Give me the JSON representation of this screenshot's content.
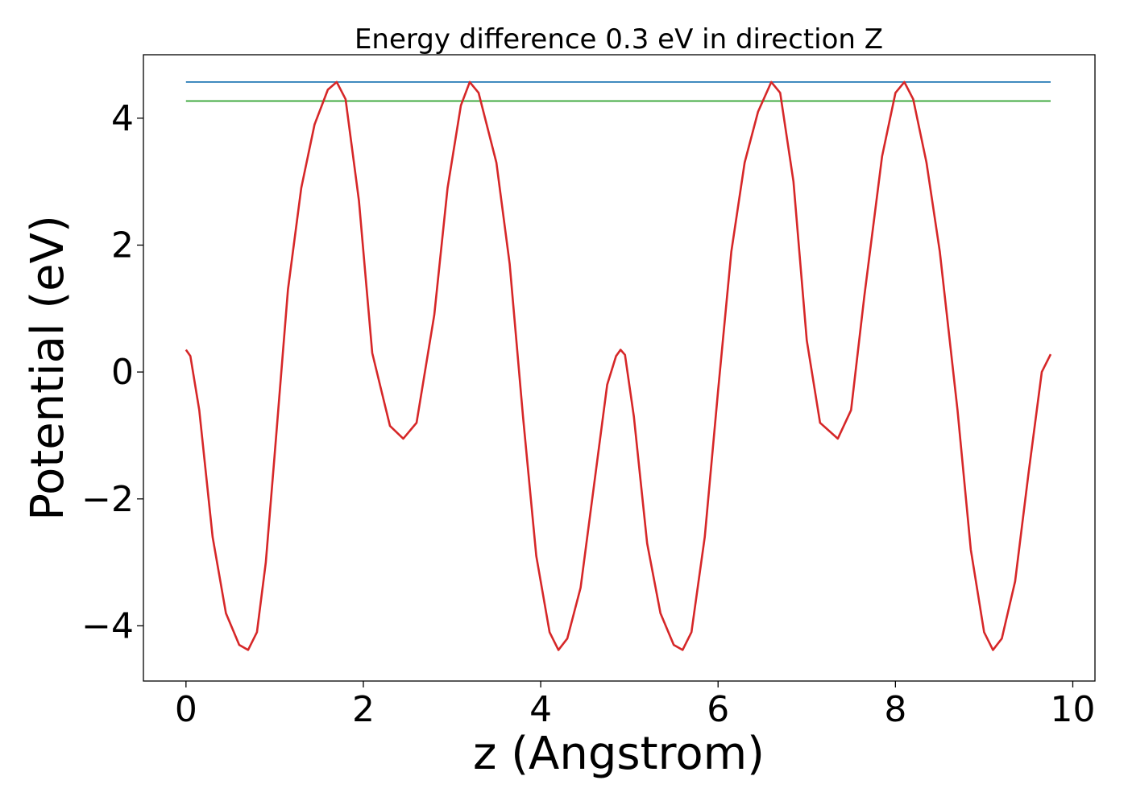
{
  "chart_data": {
    "type": "line",
    "title": "Energy difference 0.3 eV in direction Z",
    "xlabel": "z (Angstrom)",
    "ylabel": "Potential (eV)",
    "xlim": [
      -0.48,
      10.25
    ],
    "ylim": [
      -4.87,
      5.0
    ],
    "grid": false,
    "xticks": [
      0,
      2,
      4,
      6,
      8,
      10
    ],
    "xtick_labels": [
      "0",
      "2",
      "4",
      "6",
      "8",
      "10"
    ],
    "yticks": [
      -4,
      -2,
      0,
      2,
      4
    ],
    "ytick_labels": [
      "−4",
      "−2",
      "0",
      "2",
      "4"
    ],
    "series": [
      {
        "color": "#1f77b4",
        "x": [
          0,
          9.75
        ],
        "y": [
          4.57,
          4.57
        ]
      },
      {
        "color": "#2ca02c",
        "x": [
          0,
          9.75
        ],
        "y": [
          4.27,
          4.27
        ]
      },
      {
        "color": "#d62728",
        "x": [
          0,
          0.05,
          0.15,
          0.3,
          0.45,
          0.6,
          0.7,
          0.8,
          0.9,
          1.0,
          1.15,
          1.3,
          1.45,
          1.6,
          1.7,
          1.8,
          1.95,
          2.1,
          2.3,
          2.45,
          2.6,
          2.8,
          2.95,
          3.1,
          3.2,
          3.3,
          3.5,
          3.65,
          3.8,
          3.95,
          4.1,
          4.2,
          4.3,
          4.45,
          4.6,
          4.75,
          4.85,
          4.9,
          4.95,
          5.05,
          5.2,
          5.35,
          5.5,
          5.6,
          5.7,
          5.85,
          6.0,
          6.15,
          6.3,
          6.45,
          6.6,
          6.7,
          6.85,
          7.0,
          7.15,
          7.35,
          7.5,
          7.65,
          7.85,
          8.0,
          8.1,
          8.2,
          8.35,
          8.5,
          8.7,
          8.85,
          9.0,
          9.1,
          9.2,
          9.35,
          9.5,
          9.65,
          9.75
        ],
        "y": [
          0.35,
          0.25,
          -0.6,
          -2.6,
          -3.8,
          -4.3,
          -4.38,
          -4.1,
          -3.0,
          -1.3,
          1.3,
          2.9,
          3.9,
          4.45,
          4.57,
          4.3,
          2.7,
          0.3,
          -0.85,
          -1.05,
          -0.8,
          0.9,
          2.9,
          4.2,
          4.57,
          4.4,
          3.3,
          1.7,
          -0.7,
          -2.9,
          -4.1,
          -4.38,
          -4.2,
          -3.4,
          -1.8,
          -0.2,
          0.25,
          0.35,
          0.27,
          -0.7,
          -2.7,
          -3.8,
          -4.3,
          -4.38,
          -4.1,
          -2.6,
          -0.3,
          1.9,
          3.3,
          4.1,
          4.57,
          4.4,
          3.0,
          0.5,
          -0.8,
          -1.05,
          -0.6,
          1.2,
          3.4,
          4.4,
          4.57,
          4.3,
          3.3,
          1.9,
          -0.6,
          -2.8,
          -4.1,
          -4.38,
          -4.2,
          -3.3,
          -1.6,
          0.0,
          0.28
        ]
      }
    ]
  }
}
